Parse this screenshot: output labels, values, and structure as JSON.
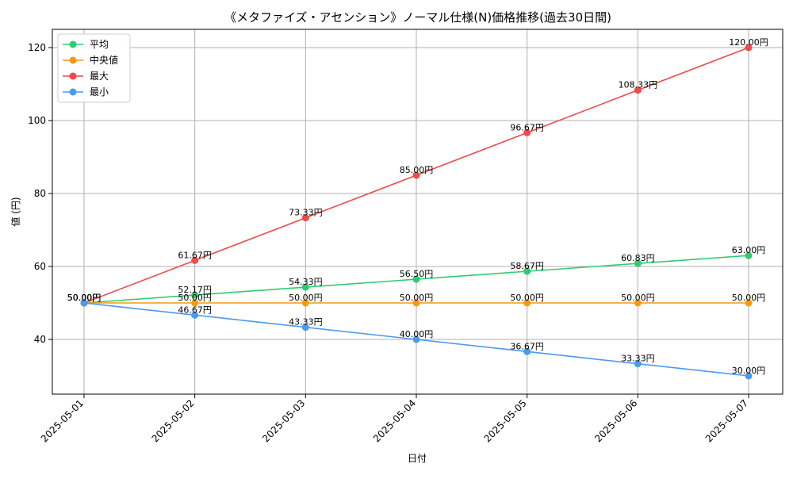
{
  "chart_data": {
    "type": "line",
    "title": "《メタファイズ・アセンション》ノーマル仕様(N)価格推移(過去30日間)",
    "xlabel": "日付",
    "ylabel": "値 (円)",
    "categories": [
      "2025-05-01",
      "2025-05-02",
      "2025-05-03",
      "2025-05-04",
      "2025-05-05",
      "2025-05-06",
      "2025-05-07"
    ],
    "ylim": [
      25,
      125
    ],
    "yticks": [
      40,
      60,
      80,
      100,
      120
    ],
    "grid": true,
    "legend_position": "top-left",
    "value_suffix": "円",
    "series": [
      {
        "name": "平均",
        "color": "#2ecc71",
        "values": [
          50.0,
          52.17,
          54.33,
          56.5,
          58.67,
          60.83,
          63.0
        ]
      },
      {
        "name": "中央値",
        "color": "#f39c12",
        "values": [
          50.0,
          50.0,
          50.0,
          50.0,
          50.0,
          50.0,
          50.0
        ]
      },
      {
        "name": "最大",
        "color": "#f04a4a",
        "values": [
          50.0,
          61.67,
          73.33,
          85.0,
          96.67,
          108.33,
          120.0
        ]
      },
      {
        "name": "最小",
        "color": "#4a9af0",
        "values": [
          50.0,
          46.67,
          43.33,
          40.0,
          36.67,
          33.33,
          30.0
        ]
      }
    ]
  }
}
